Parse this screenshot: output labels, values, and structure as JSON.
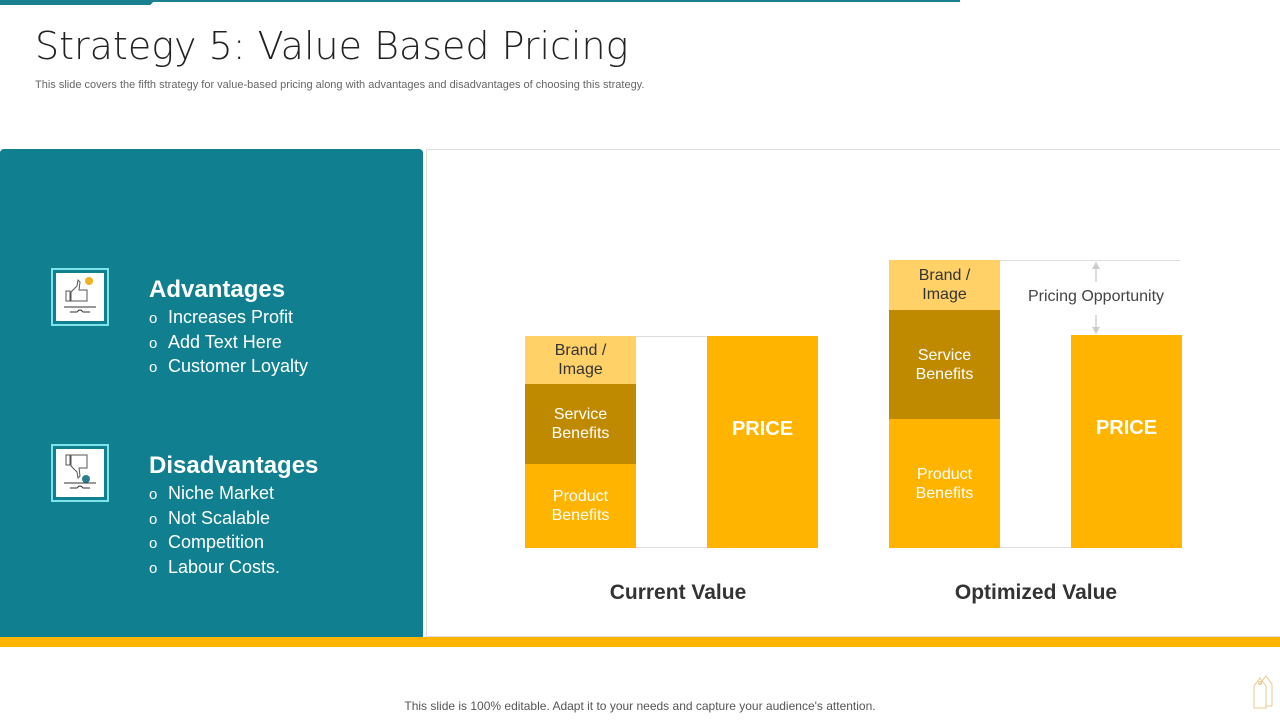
{
  "title": "Strategy 5: Value Based Pricing",
  "subtitle": "This slide covers the fifth strategy for value-based pricing along with advantages and disadvantages of choosing this strategy.",
  "advantages": {
    "heading": "Advantages",
    "icon": "thumbs-up-icon",
    "bullet": "o",
    "items": [
      "Increases Profit",
      "Add Text Here",
      "Customer Loyalty"
    ]
  },
  "disadvantages": {
    "heading": "Disadvantages",
    "icon": "thumbs-down-icon",
    "bullet": "o",
    "items": [
      "Niche Market",
      "Not Scalable",
      "Competition",
      "Labour Costs."
    ]
  },
  "colors": {
    "teal": "#107f8f",
    "gold": "#ffb400",
    "light_gold": "#ffd166",
    "dark_gold": "#c08a00"
  },
  "diagram": {
    "current": {
      "caption": "Current Value",
      "brand": "Brand / Image",
      "service": "Service Benefits",
      "product": "Product Benefits",
      "price": "PRICE"
    },
    "optimized": {
      "caption": "Optimized Value",
      "brand": "Brand / Image",
      "service": "Service Benefits",
      "product": "Product Benefits",
      "price": "PRICE",
      "opportunity": "Pricing Opportunity"
    }
  },
  "footer": "This slide is 100% editable. Adapt it to your needs and capture your audience's attention.",
  "footer_icon": "price-tag-icon"
}
